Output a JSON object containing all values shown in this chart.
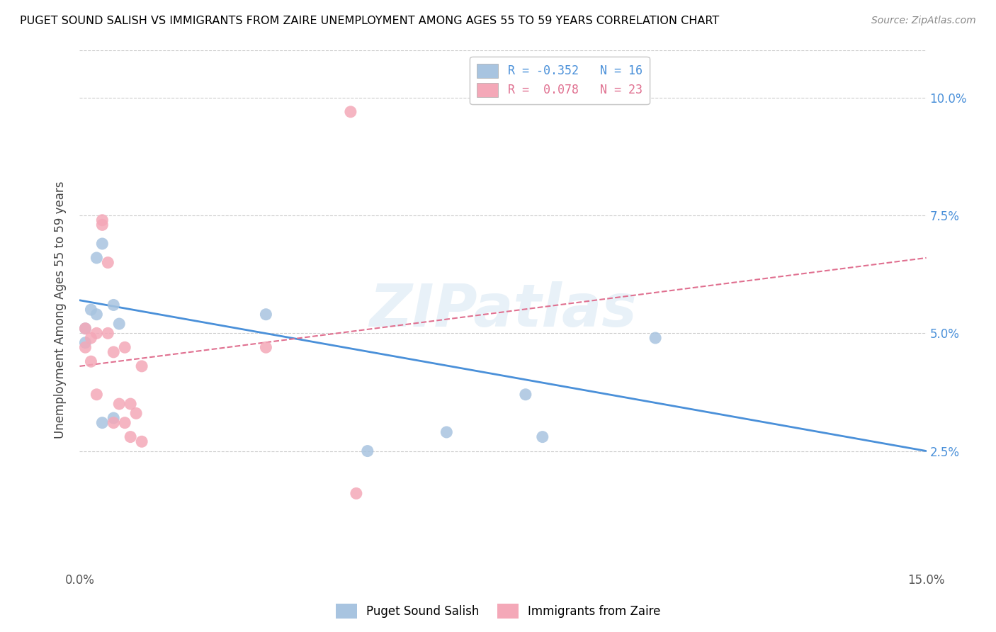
{
  "title": "PUGET SOUND SALISH VS IMMIGRANTS FROM ZAIRE UNEMPLOYMENT AMONG AGES 55 TO 59 YEARS CORRELATION CHART",
  "source": "Source: ZipAtlas.com",
  "ylabel": "Unemployment Among Ages 55 to 59 years",
  "xlim": [
    0.0,
    0.15
  ],
  "ylim": [
    0.0,
    0.11
  ],
  "ytick_right_labels": [
    "2.5%",
    "5.0%",
    "7.5%",
    "10.0%"
  ],
  "ytick_right_values": [
    0.025,
    0.05,
    0.075,
    0.1
  ],
  "xtick_positions": [
    0.0,
    0.05,
    0.1,
    0.15
  ],
  "xtick_labels": [
    "0.0%",
    "",
    "",
    "15.0%"
  ],
  "blue_color": "#a8c4e0",
  "pink_color": "#f4a8b8",
  "blue_line_color": "#4a90d9",
  "pink_line_color": "#e07090",
  "watermark": "ZIPatlas",
  "blue_scatter_x": [
    0.001,
    0.001,
    0.002,
    0.003,
    0.003,
    0.004,
    0.004,
    0.006,
    0.006,
    0.007,
    0.033,
    0.051,
    0.065,
    0.079,
    0.082,
    0.102
  ],
  "blue_scatter_y": [
    0.051,
    0.048,
    0.055,
    0.054,
    0.066,
    0.069,
    0.031,
    0.032,
    0.056,
    0.052,
    0.054,
    0.025,
    0.029,
    0.037,
    0.028,
    0.049
  ],
  "pink_scatter_x": [
    0.001,
    0.001,
    0.002,
    0.002,
    0.003,
    0.003,
    0.004,
    0.004,
    0.005,
    0.005,
    0.006,
    0.006,
    0.007,
    0.008,
    0.008,
    0.009,
    0.009,
    0.01,
    0.011,
    0.011,
    0.033,
    0.048,
    0.049
  ],
  "pink_scatter_y": [
    0.051,
    0.047,
    0.049,
    0.044,
    0.05,
    0.037,
    0.074,
    0.073,
    0.065,
    0.05,
    0.046,
    0.031,
    0.035,
    0.047,
    0.031,
    0.028,
    0.035,
    0.033,
    0.043,
    0.027,
    0.047,
    0.097,
    0.016
  ],
  "blue_trend_x": [
    0.0,
    0.15
  ],
  "blue_trend_y": [
    0.057,
    0.025
  ],
  "pink_trend_x": [
    0.0,
    0.15
  ],
  "pink_trend_y": [
    0.043,
    0.066
  ],
  "legend_entries": [
    {
      "label": "R = -0.352   N = 16",
      "color": "#4a90d9",
      "patch_color": "#a8c4e0"
    },
    {
      "label": "R =  0.078   N = 23",
      "color": "#e07090",
      "patch_color": "#f4a8b8"
    }
  ],
  "bottom_legend": [
    {
      "label": "Puget Sound Salish",
      "color": "#a8c4e0"
    },
    {
      "label": "Immigrants from Zaire",
      "color": "#f4a8b8"
    }
  ]
}
